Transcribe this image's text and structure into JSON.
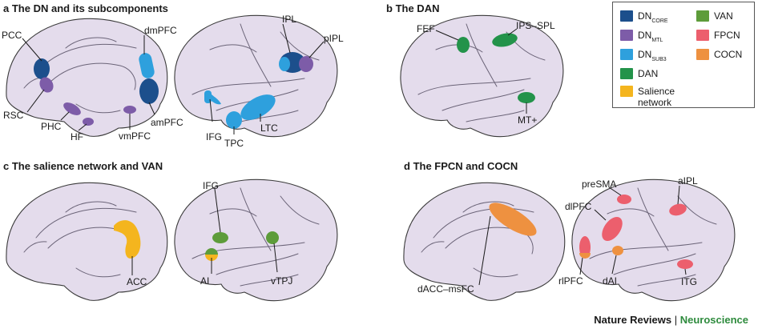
{
  "panels": {
    "a": {
      "letter": "a",
      "title": "The DN and its subcomponents"
    },
    "b": {
      "letter": "b",
      "title": "The DAN"
    },
    "c": {
      "letter": "c",
      "title": "The salience network and VAN"
    },
    "d": {
      "letter": "d",
      "title": "The FPCN and COCN"
    }
  },
  "labels": {
    "pcc": "PCC",
    "rsc": "RSC",
    "phc": "PHC",
    "hf": "HF",
    "dmpfc": "dmPFC",
    "ampfc": "amPFC",
    "vmpfc": "vmPFC",
    "ipl": "IPL",
    "pipl": "pIPL",
    "ifg_a": "IFG",
    "tpc": "TPC",
    "ltc": "LTC",
    "fef": "FEF",
    "ips_spl": "IPS–SPL",
    "mt": "MT+",
    "acc": "ACC",
    "ifg_c": "IFG",
    "ai": "AI",
    "vtpj": "vTPJ",
    "dacc_msfc": "dACC–msFC",
    "presma": "preSMA",
    "aipl": "aIPL",
    "dlpfc": "dlPFC",
    "rlpfc": "rlPFC",
    "dai": "dAI",
    "itg": "ITG"
  },
  "legend": {
    "dn_core": {
      "main": "DN",
      "sub": "CORE"
    },
    "dn_mtl": {
      "main": "DN",
      "sub": "MTL"
    },
    "dn_sub3": {
      "main": "DN",
      "sub": "SUB3"
    },
    "dan": "DAN",
    "salience": "Salience network",
    "van": "VAN",
    "fpcn": "FPCN",
    "cocn": "COCN"
  },
  "colors": {
    "dn_core": "#1c4f8c",
    "dn_mtl": "#7d5ca8",
    "dn_sub3": "#2ea0dd",
    "dan": "#23934a",
    "salience": "#f4b51e",
    "van": "#5d9c3a",
    "fpcn": "#ec5f6d",
    "cocn": "#ee9140",
    "brain": "#e4dcec"
  },
  "credit": {
    "journal": "Nature Reviews",
    "separator": " | ",
    "section": "Neuroscience",
    "section_color": "#2e8b3d"
  }
}
